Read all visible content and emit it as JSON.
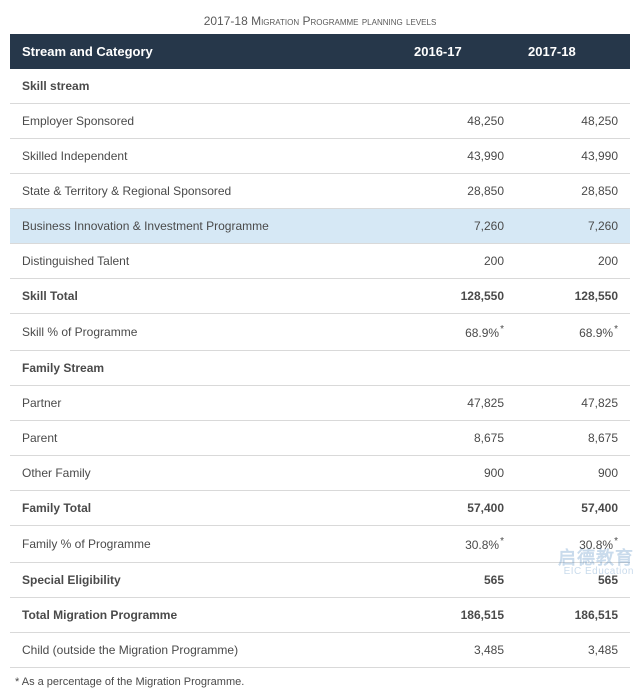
{
  "title": "2017-18 Migration Programme planning levels",
  "columns": {
    "category": "Stream and Category",
    "y1": "2016-17",
    "y2": "2017-18"
  },
  "rows": [
    {
      "type": "section",
      "label": "Skill stream"
    },
    {
      "type": "data",
      "label": "Employer Sponsored",
      "y1": "48,250",
      "y2": "48,250"
    },
    {
      "type": "data",
      "label": "Skilled Independent",
      "y1": "43,990",
      "y2": "43,990"
    },
    {
      "type": "data",
      "label": "State & Territory & Regional Sponsored",
      "y1": "28,850",
      "y2": "28,850"
    },
    {
      "type": "data",
      "label": "Business Innovation & Investment Programme",
      "y1": "7,260",
      "y2": "7,260",
      "highlight": true
    },
    {
      "type": "data",
      "label": "Distinguished Talent",
      "y1": "200",
      "y2": "200"
    },
    {
      "type": "total",
      "label": "Skill Total",
      "y1": "128,550",
      "y2": "128,550"
    },
    {
      "type": "data",
      "label": "Skill % of Programme",
      "y1": "68.9%",
      "y2": "68.9%",
      "star": true
    },
    {
      "type": "section",
      "label": "Family Stream"
    },
    {
      "type": "data",
      "label": "Partner",
      "y1": "47,825",
      "y2": "47,825"
    },
    {
      "type": "data",
      "label": "Parent",
      "y1": "8,675",
      "y2": "8,675"
    },
    {
      "type": "data",
      "label": "Other Family",
      "y1": "900",
      "y2": "900"
    },
    {
      "type": "total",
      "label": "Family Total",
      "y1": "57,400",
      "y2": "57,400"
    },
    {
      "type": "data",
      "label": "Family % of Programme",
      "y1": "30.8%",
      "y2": "30.8%",
      "star": true
    },
    {
      "type": "total",
      "label": "Special Eligibility",
      "y1": "565",
      "y2": "565"
    },
    {
      "type": "total",
      "label": "Total Migration Programme",
      "y1": "186,515",
      "y2": "186,515"
    },
    {
      "type": "data",
      "label": "Child (outside the Migration Programme)",
      "y1": "3,485",
      "y2": "3,485"
    }
  ],
  "footnote": "As a percentage of the Migration Programme.",
  "watermark": {
    "cn": "启德教育",
    "en": "EIC Education"
  }
}
